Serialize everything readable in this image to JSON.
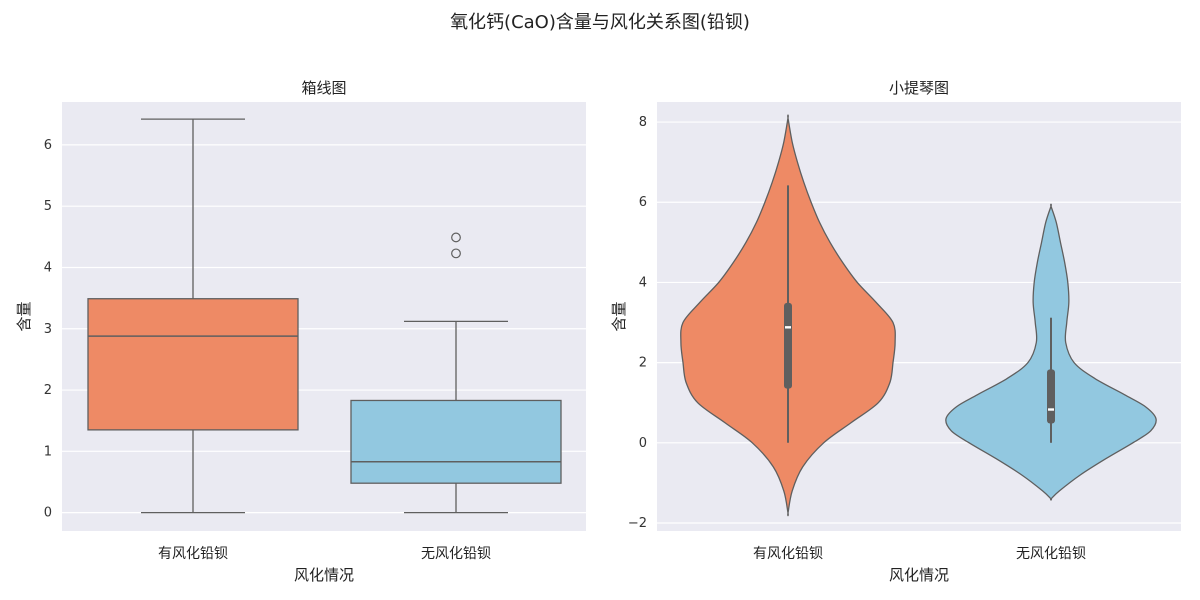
{
  "figure": {
    "title": "氧化钙(CaO)含量与风化关系图(铅钡)"
  },
  "chart_data": [
    {
      "type": "box",
      "title": "箱线图",
      "xlabel": "风化情况",
      "ylabel": "含量",
      "categories": [
        "有风化铅钡",
        "无风化铅钡"
      ],
      "ylim": [
        -0.3,
        6.7
      ],
      "yticks": [
        0,
        1,
        2,
        3,
        4,
        5,
        6
      ],
      "grid": true,
      "series": [
        {
          "category": "有风化铅钡",
          "min": 0.0,
          "q1": 1.35,
          "median": 2.88,
          "q3": 3.49,
          "max": 6.42,
          "outliers": [],
          "color": "#ee8a65"
        },
        {
          "category": "无风化铅钡",
          "min": 0.0,
          "q1": 0.48,
          "median": 0.83,
          "q3": 1.83,
          "max": 3.12,
          "outliers": [
            4.23,
            4.49
          ],
          "color": "#92c8e0"
        }
      ]
    },
    {
      "type": "violin",
      "title": "小提琴图",
      "xlabel": "风化情况",
      "ylabel": "含量",
      "categories": [
        "有风化铅钡",
        "无风化铅钡"
      ],
      "ylim": [
        -2.2,
        8.5
      ],
      "yticks": [
        -2,
        0,
        2,
        4,
        6,
        8
      ],
      "grid": true,
      "series": [
        {
          "category": "有风化铅钡",
          "color": "#ee8a65",
          "min": 0.0,
          "q1": 1.35,
          "median": 2.88,
          "q3": 3.49,
          "max": 6.42,
          "density": [
            [
              -1.75,
              0.0
            ],
            [
              -1.2,
              0.04
            ],
            [
              -0.6,
              0.14
            ],
            [
              0,
              0.34
            ],
            [
              0.5,
              0.6
            ],
            [
              1.0,
              0.86
            ],
            [
              1.5,
              0.97
            ],
            [
              2.0,
              1.0
            ],
            [
              2.5,
              1.02
            ],
            [
              3.0,
              1.0
            ],
            [
              3.5,
              0.84
            ],
            [
              4.0,
              0.66
            ],
            [
              4.5,
              0.52
            ],
            [
              5.0,
              0.4
            ],
            [
              5.5,
              0.3
            ],
            [
              6.0,
              0.22
            ],
            [
              6.5,
              0.15
            ],
            [
              7.0,
              0.09
            ],
            [
              7.5,
              0.04
            ],
            [
              8.1,
              0.0
            ]
          ]
        },
        {
          "category": "无风化铅钡",
          "color": "#92c8e0",
          "min": 0.0,
          "q1": 0.48,
          "median": 0.83,
          "q3": 1.83,
          "max": 3.12,
          "density": [
            [
              -1.4,
              0.0
            ],
            [
              -1.2,
              0.08
            ],
            [
              -0.8,
              0.28
            ],
            [
              -0.4,
              0.52
            ],
            [
              0,
              0.78
            ],
            [
              0.3,
              0.95
            ],
            [
              0.6,
              1.0
            ],
            [
              0.9,
              0.9
            ],
            [
              1.2,
              0.7
            ],
            [
              1.6,
              0.42
            ],
            [
              2.0,
              0.22
            ],
            [
              2.5,
              0.14
            ],
            [
              3.0,
              0.15
            ],
            [
              3.5,
              0.17
            ],
            [
              4.0,
              0.16
            ],
            [
              4.5,
              0.13
            ],
            [
              5.0,
              0.09
            ],
            [
              5.5,
              0.05
            ],
            [
              5.9,
              0.0
            ]
          ]
        }
      ]
    }
  ]
}
